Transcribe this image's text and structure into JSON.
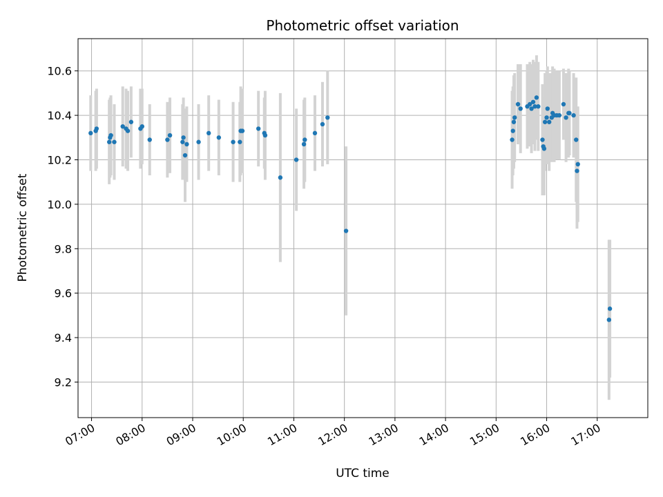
{
  "chart_data": {
    "type": "scatter",
    "title": "Photometric offset variation",
    "xlabel": "UTC time",
    "ylabel": "Photometric offset",
    "x_unit": "hours UTC",
    "xlim": [
      6.733,
      18.0
    ],
    "ylim": [
      9.04,
      10.745
    ],
    "x_ticks": [
      7,
      8,
      9,
      10,
      11,
      12,
      13,
      14,
      15,
      16,
      17
    ],
    "x_tick_labels": [
      "07:00",
      "08:00",
      "09:00",
      "10:00",
      "11:00",
      "12:00",
      "13:00",
      "14:00",
      "15:00",
      "16:00",
      "17:00"
    ],
    "y_ticks": [
      9.2,
      9.4,
      9.6,
      9.8,
      10.0,
      10.2,
      10.4,
      10.6
    ],
    "y_tick_labels": [
      "9.2",
      "9.4",
      "9.6",
      "9.8",
      "10.0",
      "10.2",
      "10.4",
      "10.6"
    ],
    "grid": true,
    "marker_color": "#1f77b4",
    "errorbar_color": "#d3d3d3",
    "series": [
      {
        "x": [
          6.983,
          7.083,
          7.1,
          7.35,
          7.367,
          7.383,
          7.45,
          7.617,
          7.683,
          7.717,
          7.783,
          7.967,
          8.0,
          8.15,
          8.5,
          8.55,
          8.8,
          8.817,
          8.85,
          8.883,
          9.117,
          9.317,
          9.517,
          9.8,
          9.933,
          9.95,
          9.983,
          10.3,
          10.417,
          10.433,
          10.733,
          11.05,
          11.2,
          11.217,
          11.417,
          11.567,
          11.667,
          12.033
        ],
        "y": [
          10.32,
          10.33,
          10.34,
          10.28,
          10.3,
          10.31,
          10.28,
          10.35,
          10.34,
          10.33,
          10.37,
          10.34,
          10.35,
          10.29,
          10.29,
          10.31,
          10.28,
          10.3,
          10.22,
          10.27,
          10.28,
          10.32,
          10.3,
          10.28,
          10.28,
          10.33,
          10.33,
          10.34,
          10.32,
          10.31,
          10.12,
          10.2,
          10.27,
          10.29,
          10.32,
          10.36,
          10.39,
          9.88
        ],
        "yerr": [
          0.17,
          0.18,
          0.18,
          0.19,
          0.18,
          0.18,
          0.17,
          0.18,
          0.18,
          0.18,
          0.16,
          0.18,
          0.17,
          0.16,
          0.17,
          0.17,
          0.17,
          0.18,
          0.21,
          0.17,
          0.17,
          0.17,
          0.17,
          0.18,
          0.18,
          0.2,
          0.19,
          0.17,
          0.16,
          0.2,
          0.38,
          0.23,
          0.2,
          0.19,
          0.17,
          0.19,
          0.21,
          0.38
        ]
      },
      {
        "x": [
          15.317,
          15.333,
          15.35,
          15.367,
          15.433,
          15.483,
          15.617,
          15.667,
          15.7,
          15.733,
          15.767,
          15.8,
          15.833,
          15.917,
          15.933,
          15.95,
          15.967,
          16.0,
          16.017,
          16.05,
          16.1,
          16.117,
          16.15,
          16.2,
          16.25,
          16.333,
          16.383,
          16.433,
          16.45,
          16.533,
          16.583,
          16.6,
          16.617
        ],
        "y": [
          10.29,
          10.33,
          10.37,
          10.39,
          10.45,
          10.43,
          10.44,
          10.45,
          10.43,
          10.46,
          10.44,
          10.48,
          10.44,
          10.29,
          10.26,
          10.25,
          10.37,
          10.39,
          10.43,
          10.37,
          10.39,
          10.41,
          10.4,
          10.4,
          10.4,
          10.45,
          10.39,
          10.41,
          10.41,
          10.4,
          10.29,
          10.15,
          10.18
        ],
        "yerr": [
          0.22,
          0.2,
          0.21,
          0.2,
          0.18,
          0.2,
          0.19,
          0.19,
          0.2,
          0.19,
          0.2,
          0.19,
          0.2,
          0.25,
          0.22,
          0.21,
          0.22,
          0.21,
          0.19,
          0.22,
          0.2,
          0.21,
          0.21,
          0.2,
          0.2,
          0.16,
          0.2,
          0.2,
          0.19,
          0.19,
          0.28,
          0.26,
          0.26
        ]
      },
      {
        "x": [
          17.233,
          17.25
        ],
        "y": [
          9.48,
          9.53
        ],
        "yerr": [
          0.36,
          0.31
        ]
      }
    ]
  }
}
